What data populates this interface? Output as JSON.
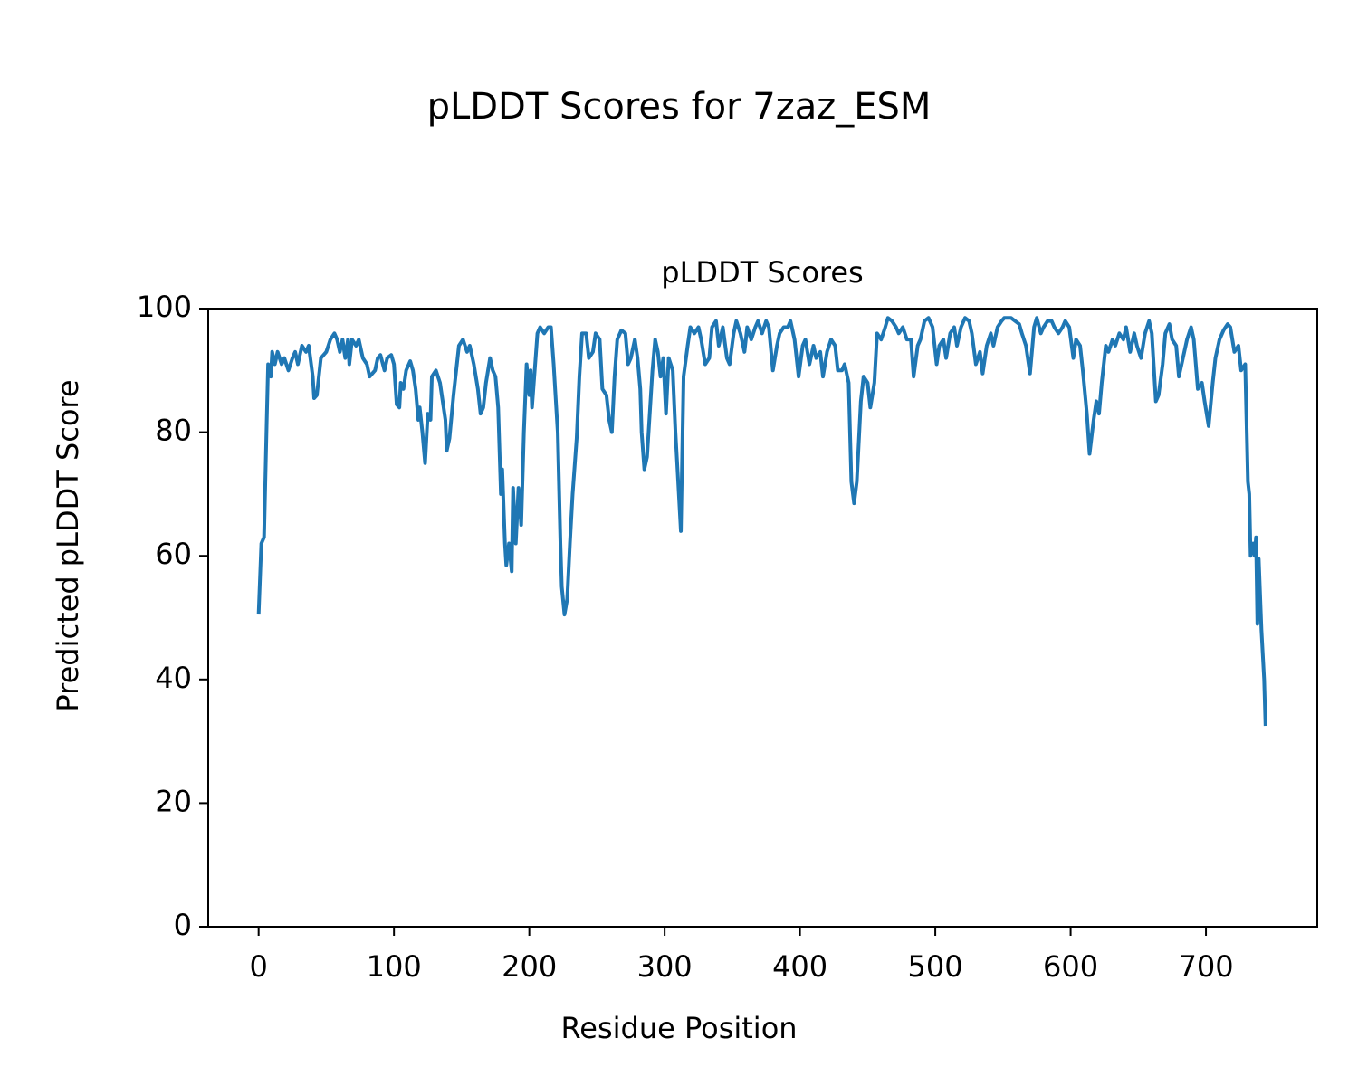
{
  "chart_data": {
    "type": "line",
    "title": "pLDDT Scores for 7zaz_ESM",
    "subtitle": "pLDDT Scores",
    "x_label": "Residue Position",
    "y_label": "Predicted pLDDT Score",
    "color": "#1f77b4",
    "xlim": [
      -37.25,
      782.25
    ],
    "ylim": [
      0,
      100
    ],
    "xticks": [
      0,
      100,
      200,
      300,
      400,
      500,
      600,
      700
    ],
    "yticks": [
      0,
      20,
      40,
      60,
      80,
      100
    ],
    "x": [
      0,
      2,
      4,
      6,
      7,
      9,
      10,
      12,
      14,
      17,
      19,
      22,
      25,
      27,
      29,
      32,
      35,
      37,
      40,
      41,
      43,
      46,
      50,
      53,
      56,
      58,
      60,
      62,
      64,
      66,
      67,
      69,
      72,
      74,
      77,
      80,
      82,
      86,
      88,
      90,
      93,
      95,
      98,
      100,
      102,
      104,
      105,
      107,
      109,
      112,
      114,
      116,
      118,
      119,
      121,
      123,
      125,
      127,
      128,
      131,
      134,
      136,
      138,
      139,
      141,
      144,
      146,
      148,
      151,
      154,
      156,
      159,
      162,
      164,
      166,
      168,
      171,
      173,
      175,
      177,
      179,
      180,
      182,
      183,
      185,
      187,
      188,
      190,
      192,
      194,
      196,
      198,
      200,
      201,
      202,
      204,
      206,
      208,
      211,
      214,
      216,
      218,
      221,
      223,
      224,
      226,
      228,
      230,
      232,
      235,
      237,
      239,
      242,
      244,
      247,
      249,
      252,
      254,
      257,
      259,
      261,
      263,
      265,
      268,
      271,
      273,
      275,
      278,
      280,
      282,
      283,
      285,
      287,
      289,
      291,
      293,
      295,
      297,
      299,
      301,
      303,
      306,
      308,
      310,
      312,
      314,
      317,
      319,
      322,
      325,
      327,
      330,
      333,
      335,
      338,
      340,
      343,
      346,
      348,
      351,
      353,
      356,
      359,
      361,
      364,
      367,
      369,
      372,
      375,
      377,
      380,
      383,
      385,
      388,
      391,
      393,
      396,
      399,
      402,
      404,
      407,
      410,
      412,
      415,
      417,
      420,
      423,
      426,
      428,
      431,
      433,
      436,
      438,
      440,
      442,
      445,
      447,
      450,
      452,
      455,
      457,
      460,
      463,
      465,
      468,
      471,
      473,
      476,
      479,
      482,
      484,
      487,
      489,
      492,
      495,
      498,
      501,
      503,
      506,
      508,
      511,
      514,
      516,
      519,
      522,
      525,
      527,
      530,
      533,
      535,
      538,
      541,
      543,
      546,
      549,
      551,
      554,
      556,
      559,
      562,
      564,
      567,
      570,
      573,
      575,
      578,
      580,
      583,
      586,
      588,
      591,
      594,
      596,
      599,
      602,
      604,
      607,
      609,
      612,
      614,
      617,
      619,
      621,
      623,
      626,
      628,
      631,
      633,
      636,
      639,
      641,
      644,
      647,
      649,
      652,
      655,
      658,
      660,
      663,
      665,
      668,
      670,
      673,
      675,
      678,
      680,
      683,
      686,
      689,
      691,
      694,
      697,
      699,
      702,
      705,
      707,
      710,
      713,
      716,
      718,
      721,
      724,
      726,
      729,
      731,
      732,
      733,
      735,
      736,
      737,
      738,
      739,
      741,
      742,
      743,
      744
    ],
    "values": [
      50.5,
      62,
      63,
      82,
      91,
      89,
      93,
      91,
      93,
      91,
      92,
      90,
      92,
      93,
      91,
      94,
      93,
      94,
      89,
      85.5,
      86,
      92,
      93,
      95,
      96,
      95,
      93,
      95,
      92,
      95,
      91,
      95,
      94,
      95,
      92,
      91,
      89,
      90,
      92,
      92.5,
      90,
      92,
      92.5,
      91,
      84.5,
      84,
      88,
      87,
      90,
      91.5,
      90,
      87,
      82,
      84,
      80,
      75,
      83,
      82,
      89,
      90,
      88,
      85,
      82,
      77,
      79,
      86,
      90,
      94,
      95,
      93,
      94,
      91,
      87,
      83,
      84,
      88,
      92,
      90,
      89,
      84,
      70,
      74,
      62,
      58.5,
      62,
      57.5,
      71,
      62,
      71,
      65,
      80,
      91,
      86,
      90,
      84,
      90,
      96,
      97,
      96,
      97,
      97,
      91,
      80,
      62,
      55,
      50.5,
      53,
      62,
      70,
      79,
      89,
      96,
      96,
      92,
      93,
      96,
      95,
      87,
      86,
      82,
      80,
      89,
      95,
      96.5,
      96,
      91,
      92,
      95,
      92,
      87,
      80,
      74,
      76,
      83,
      90,
      95,
      93,
      89,
      92,
      83,
      92,
      90,
      80,
      72,
      64,
      89,
      94,
      97,
      96,
      97,
      95,
      91,
      92,
      97,
      98,
      94,
      97,
      92,
      91,
      96,
      98,
      96,
      93,
      97,
      95,
      97,
      98,
      96,
      98,
      97,
      90,
      94,
      96,
      97,
      97,
      98,
      95,
      89,
      94,
      95,
      91,
      94,
      92,
      93,
      89,
      93,
      95,
      94,
      90,
      90,
      91,
      88,
      72,
      68.5,
      72,
      85,
      89,
      88,
      84,
      88,
      96,
      95,
      97,
      98.5,
      98,
      97,
      96,
      97,
      95,
      95,
      89,
      94,
      95,
      98,
      98.5,
      97,
      91,
      94,
      95,
      92,
      96,
      97,
      94,
      97,
      98.5,
      98,
      96,
      91,
      93,
      89.5,
      94,
      96,
      94,
      97,
      98,
      98.5,
      98.5,
      98.5,
      98,
      97.5,
      96,
      94,
      89.5,
      97,
      98.5,
      96,
      97,
      98,
      98,
      97,
      96,
      97,
      98,
      97,
      92,
      95,
      94,
      90,
      83,
      76.5,
      82,
      85,
      83,
      88,
      94,
      93,
      95,
      94,
      96,
      95,
      97,
      93,
      96,
      94,
      92,
      96,
      98,
      96,
      85,
      86,
      91,
      96,
      97.5,
      95,
      94,
      89,
      92,
      95,
      97,
      95,
      87,
      88,
      85,
      81,
      88,
      92,
      95,
      96.5,
      97.5,
      97,
      93,
      94,
      90,
      91,
      72,
      70,
      60,
      62,
      60,
      63,
      49,
      59.5,
      48,
      44,
      40,
      32.5
    ]
  }
}
